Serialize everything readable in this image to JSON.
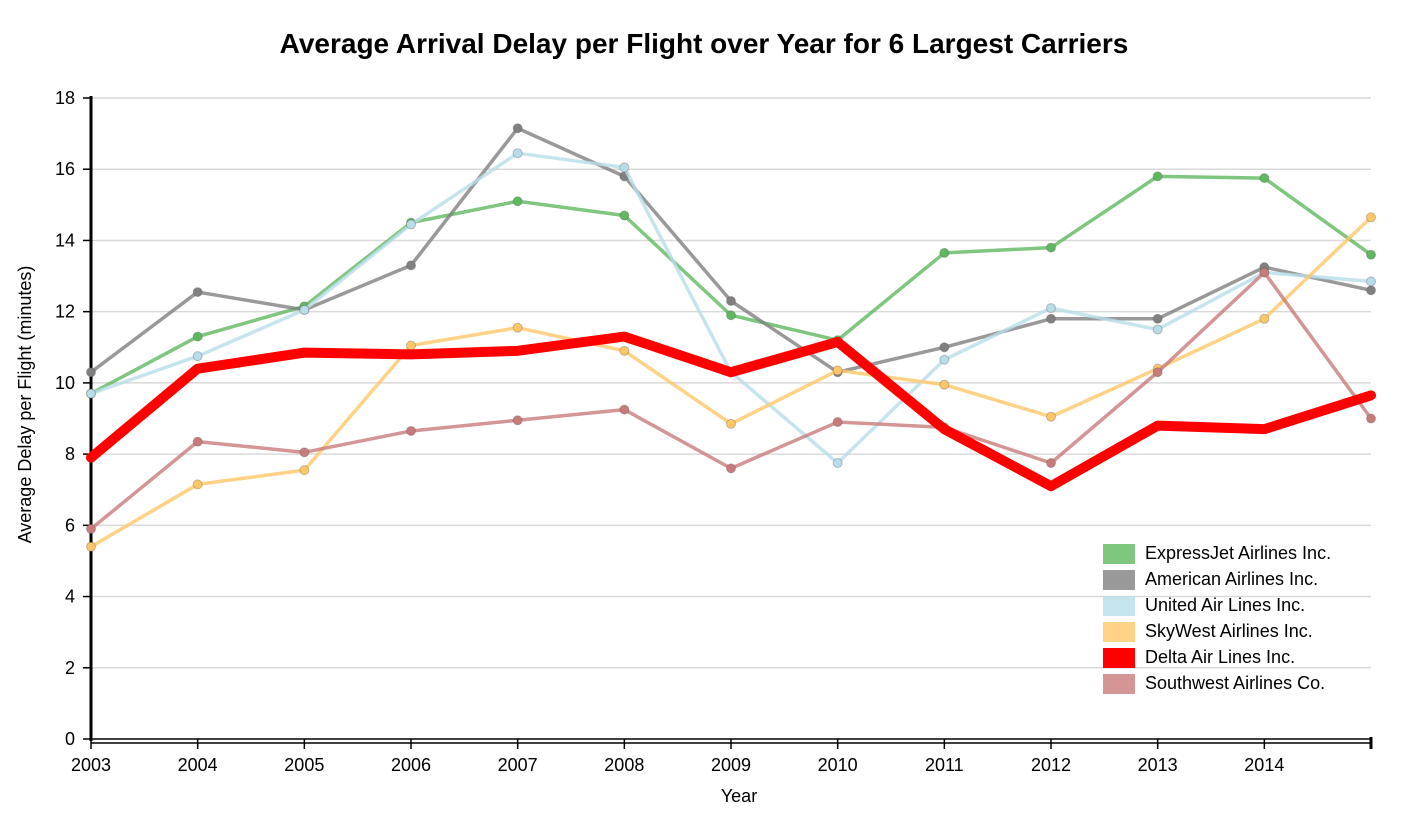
{
  "chart_data": {
    "type": "line",
    "title": "Average Arrival Delay per Flight over Year for 6 Largest Carriers",
    "xlabel": "Year",
    "ylabel": "Average Delay per Flight (minutes)",
    "x": [
      2003,
      2004,
      2005,
      2006,
      2007,
      2008,
      2009,
      2010,
      2011,
      2012,
      2013,
      2014,
      2015
    ],
    "x_tick_labels": [
      "2003",
      "2004",
      "2005",
      "2006",
      "2007",
      "2008",
      "2009",
      "2010",
      "2011",
      "2012",
      "2013",
      "2014"
    ],
    "xlim": [
      2003,
      2015
    ],
    "ylim": [
      0,
      18
    ],
    "y_ticks": [
      0,
      2,
      4,
      6,
      8,
      10,
      12,
      14,
      16,
      18
    ],
    "grid": true,
    "legend_position": "bottom-right",
    "series": [
      {
        "name": "ExpressJet Airlines Inc.",
        "color": "#5fb85f",
        "highlight": false,
        "values": [
          9.7,
          11.3,
          12.15,
          14.5,
          15.1,
          14.7,
          11.9,
          11.2,
          13.65,
          13.8,
          15.8,
          15.75,
          13.6
        ]
      },
      {
        "name": "American Airlines Inc.",
        "color": "#808080",
        "highlight": false,
        "values": [
          10.3,
          12.55,
          12.05,
          13.3,
          17.15,
          15.8,
          12.3,
          10.3,
          11.0,
          11.8,
          11.8,
          13.25,
          12.6
        ]
      },
      {
        "name": "United Air Lines Inc.",
        "color": "#b8dde8",
        "highlight": false,
        "values": [
          9.7,
          10.75,
          12.05,
          14.45,
          16.45,
          16.05,
          10.3,
          7.75,
          10.65,
          12.1,
          11.5,
          13.1,
          12.85
        ]
      },
      {
        "name": "SkyWest Airlines Inc.",
        "color": "#ffc766",
        "highlight": false,
        "values": [
          5.4,
          7.15,
          7.55,
          11.05,
          11.55,
          10.9,
          8.85,
          10.35,
          9.95,
          9.05,
          10.4,
          11.8,
          14.65
        ]
      },
      {
        "name": "Delta Air Lines Inc.",
        "color": "#ff0000",
        "highlight": true,
        "values": [
          7.9,
          10.4,
          10.85,
          10.8,
          10.9,
          11.3,
          10.3,
          11.15,
          8.7,
          7.1,
          8.8,
          8.7,
          9.65
        ]
      },
      {
        "name": "Southwest Airlines Co.",
        "color": "#c97b7b",
        "highlight": false,
        "values": [
          5.9,
          8.35,
          8.05,
          8.65,
          8.95,
          9.25,
          7.6,
          8.9,
          8.75,
          7.75,
          10.3,
          13.1,
          9.0
        ]
      }
    ]
  }
}
